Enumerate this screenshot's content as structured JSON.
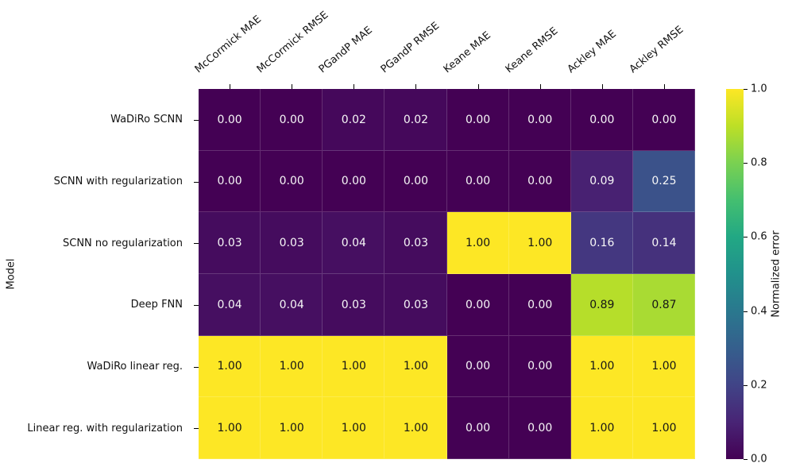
{
  "chart_data": {
    "type": "heatmap",
    "title": "",
    "xlabel": "",
    "ylabel": "Model",
    "colorbar_label": "Normalized error",
    "colormap": "viridis",
    "vmin": 0.0,
    "vmax": 1.0,
    "grid": false,
    "legend_position": "right-colorbar",
    "columns": [
      "McCormick MAE",
      "McCormick RMSE",
      "PGandP MAE",
      "PGandP RMSE",
      "Keane MAE",
      "Keane RMSE",
      "Ackley MAE",
      "Ackley RMSE"
    ],
    "rows": [
      "WaDiRo SCNN",
      "SCNN with regularization",
      "SCNN no regularization",
      "Deep FNN",
      "WaDiRo linear reg.",
      "Linear reg. with regularization"
    ],
    "values": [
      [
        0.0,
        0.0,
        0.02,
        0.02,
        0.0,
        0.0,
        0.0,
        0.0
      ],
      [
        0.0,
        0.0,
        0.0,
        0.0,
        0.0,
        0.0,
        0.09,
        0.25
      ],
      [
        0.03,
        0.03,
        0.04,
        0.03,
        1.0,
        1.0,
        0.16,
        0.14
      ],
      [
        0.04,
        0.04,
        0.03,
        0.03,
        0.0,
        0.0,
        0.89,
        0.87
      ],
      [
        1.0,
        1.0,
        1.0,
        1.0,
        0.0,
        0.0,
        1.0,
        1.0
      ],
      [
        1.0,
        1.0,
        1.0,
        1.0,
        0.0,
        0.0,
        1.0,
        1.0
      ]
    ],
    "annotation_decimals": 2,
    "colorbar_ticks": [
      0.0,
      0.2,
      0.4,
      0.6,
      0.8,
      1.0
    ],
    "colorbar_tick_decimals": 1
  },
  "colors": {
    "background": "#ffffff",
    "text": "#111111",
    "annotation_light": "#f7f7f7",
    "annotation_dark": "#161616",
    "viridis_stops": [
      "#440154",
      "#482475",
      "#414487",
      "#355f8d",
      "#2a788e",
      "#21918c",
      "#22a884",
      "#44bf70",
      "#7ad151",
      "#bddf26",
      "#fde725"
    ]
  }
}
